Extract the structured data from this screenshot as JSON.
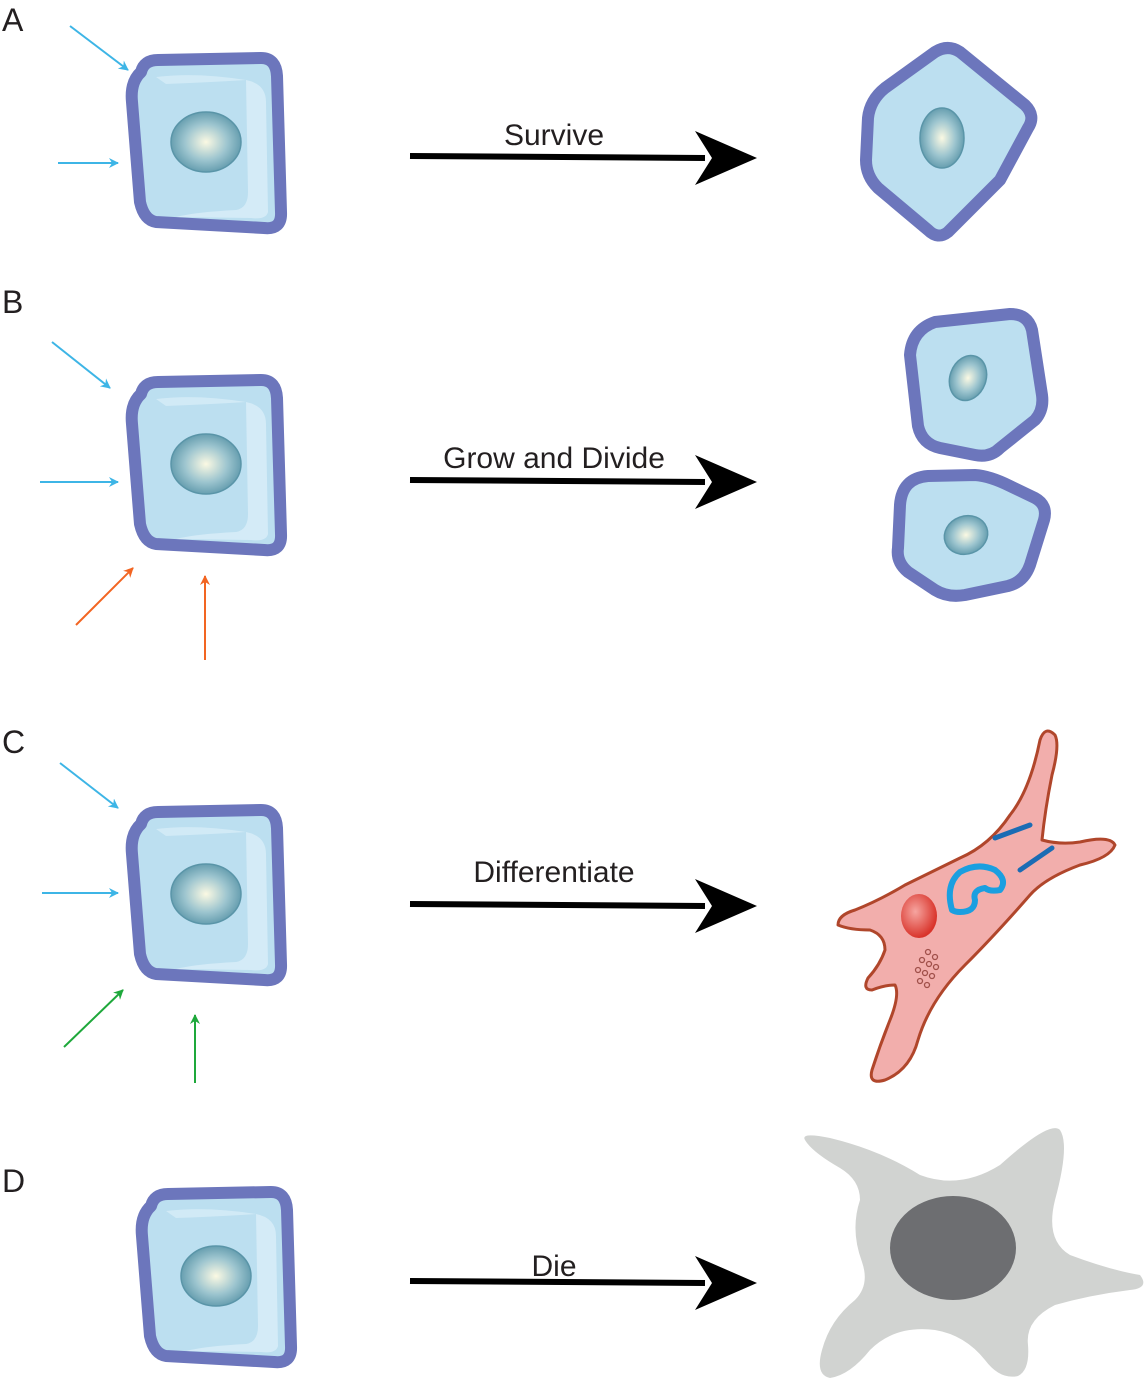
{
  "panels": [
    {
      "letter": "A",
      "label": "Survive"
    },
    {
      "letter": "B",
      "label": "Grow and Divide"
    },
    {
      "letter": "C",
      "label": "Differentiate"
    },
    {
      "letter": "D",
      "label": "Die"
    }
  ],
  "colors": {
    "cell_fill": "#bcdff0",
    "cell_border": "#6c76bc",
    "signal_blue": "#3db5e6",
    "signal_orange": "#f26522",
    "signal_green": "#1ea83b",
    "arrow": "#000000",
    "differentiated_cell": "#f2aeac",
    "differentiated_outline": "#b0462b",
    "differentiated_nucleus": "#d9342b",
    "organelle_blue": "#1b9fe0",
    "dead_cell": "#d1d3d1",
    "dead_nucleus": "#6d6e71"
  }
}
